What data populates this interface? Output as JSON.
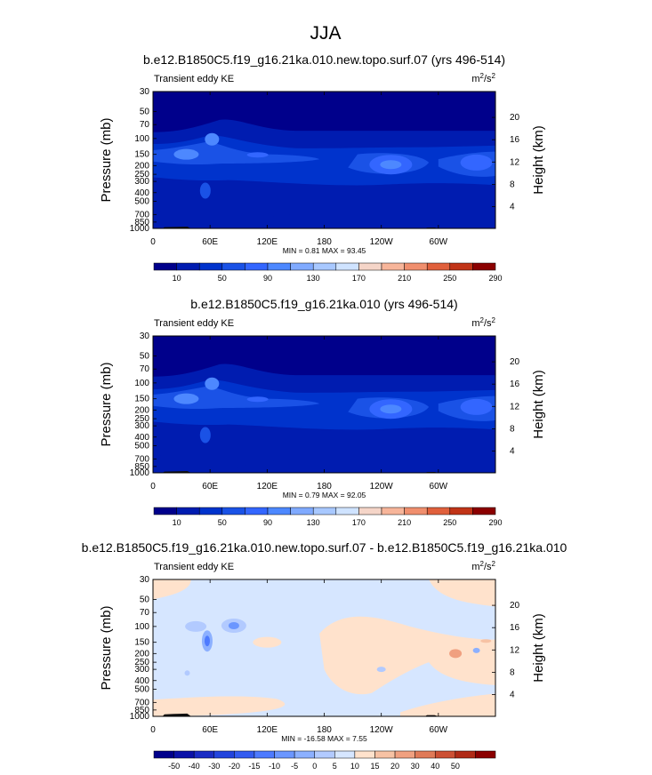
{
  "figure": {
    "title": "JJA"
  },
  "colors": {
    "abs_scale": [
      "#00008b",
      "#001cb0",
      "#0033cc",
      "#1a52e6",
      "#3366ff",
      "#4d88ff",
      "#80aaff",
      "#a8c8ff",
      "#cfe3ff",
      "#f5d5c8",
      "#f7b59a",
      "#f08f6e",
      "#e0603c",
      "#c13417",
      "#8b0000"
    ],
    "diff_scale": [
      "#00008b",
      "#0b12a8",
      "#1a2cc4",
      "#2244dd",
      "#335cf0",
      "#4d7aff",
      "#6b96ff",
      "#8cb0ff",
      "#b2caff",
      "#d6e6ff",
      "#ffe2cc",
      "#f7c2a4",
      "#f0a080",
      "#e07a58",
      "#cc5034",
      "#b02a16",
      "#8b0000"
    ],
    "terrain": "#111111"
  },
  "panels": [
    {
      "title": "b.e12.B1850C5.f19_g16.21ka.010.new.topo.surf.07 (yrs 496-514)",
      "left_label": "Transient eddy KE",
      "units": "m",
      "units_sup": "2",
      "units_mid": "/s",
      "ylabel": "Pressure (mb)",
      "ylabel_right": "Height (km)",
      "stats": "MIN =   0.81  MAX =  93.45"
    },
    {
      "title": "b.e12.B1850C5.f19_g16.21ka.010 (yrs 496-514)",
      "left_label": "Transient eddy KE",
      "units": "m",
      "units_sup": "2",
      "units_mid": "/s",
      "ylabel": "Pressure (mb)",
      "ylabel_right": "Height (km)",
      "stats": "MIN =   0.79  MAX =  92.05"
    },
    {
      "title": "b.e12.B1850C5.f19_g16.21ka.010.new.topo.surf.07 - b.e12.B1850C5.f19_g16.21ka.010",
      "left_label": "Transient eddy KE",
      "units": "m",
      "units_sup": "2",
      "units_mid": "/s",
      "ylabel": "Pressure (mb)",
      "ylabel_right": "Height (km)",
      "stats": "MIN = -16.58  MAX =   7.55"
    }
  ],
  "chart_data": [
    {
      "type": "heatmap",
      "title": "b.e12.B1850C5.f19_g16.21ka.010.new.topo.surf.07 (yrs 496-514)",
      "xlabel": "",
      "ylabel": "Pressure (mb)",
      "y2label": "Height (km)",
      "xticks": [
        "0",
        "60E",
        "120E",
        "180",
        "120W",
        "60W"
      ],
      "xtick_values": [
        0,
        60,
        120,
        180,
        240,
        300
      ],
      "xlim": [
        0,
        360
      ],
      "yticks": [
        30,
        50,
        70,
        100,
        150,
        200,
        250,
        300,
        400,
        500,
        700,
        850,
        1000
      ],
      "ylim": [
        1000,
        30
      ],
      "y_scale": "log",
      "y2ticks": [
        4,
        8,
        12,
        16,
        20
      ],
      "colorbar_labels": [
        "10",
        "50",
        "90",
        "130",
        "170",
        "210",
        "250",
        "290"
      ],
      "min": 0.81,
      "max": 93.45
    },
    {
      "type": "heatmap",
      "title": "b.e12.B1850C5.f19_g16.21ka.010 (yrs 496-514)",
      "xlabel": "",
      "ylabel": "Pressure (mb)",
      "y2label": "Height (km)",
      "xticks": [
        "0",
        "60E",
        "120E",
        "180",
        "120W",
        "60W"
      ],
      "xtick_values": [
        0,
        60,
        120,
        180,
        240,
        300
      ],
      "xlim": [
        0,
        360
      ],
      "yticks": [
        30,
        50,
        70,
        100,
        150,
        200,
        250,
        300,
        400,
        500,
        700,
        850,
        1000
      ],
      "ylim": [
        1000,
        30
      ],
      "y_scale": "log",
      "y2ticks": [
        4,
        8,
        12,
        16,
        20
      ],
      "colorbar_labels": [
        "10",
        "50",
        "90",
        "130",
        "170",
        "210",
        "250",
        "290"
      ],
      "min": 0.79,
      "max": 92.05
    },
    {
      "type": "heatmap",
      "title": "b.e12.B1850C5.f19_g16.21ka.010.new.topo.surf.07 - b.e12.B1850C5.f19_g16.21ka.010",
      "xlabel": "",
      "ylabel": "Pressure (mb)",
      "y2label": "Height (km)",
      "xticks": [
        "0",
        "60E",
        "120E",
        "180",
        "120W",
        "60W"
      ],
      "xtick_values": [
        0,
        60,
        120,
        180,
        240,
        300
      ],
      "xlim": [
        0,
        360
      ],
      "yticks": [
        30,
        50,
        70,
        100,
        150,
        200,
        250,
        300,
        400,
        500,
        700,
        850,
        1000
      ],
      "ylim": [
        1000,
        30
      ],
      "y_scale": "log",
      "y2ticks": [
        4,
        8,
        12,
        16,
        20
      ],
      "colorbar_labels": [
        "-50",
        "-40",
        "-30",
        "-20",
        "-15",
        "-10",
        "-5",
        "0",
        "5",
        "10",
        "15",
        "20",
        "30",
        "40",
        "50"
      ],
      "min": -16.58,
      "max": 7.55
    }
  ]
}
